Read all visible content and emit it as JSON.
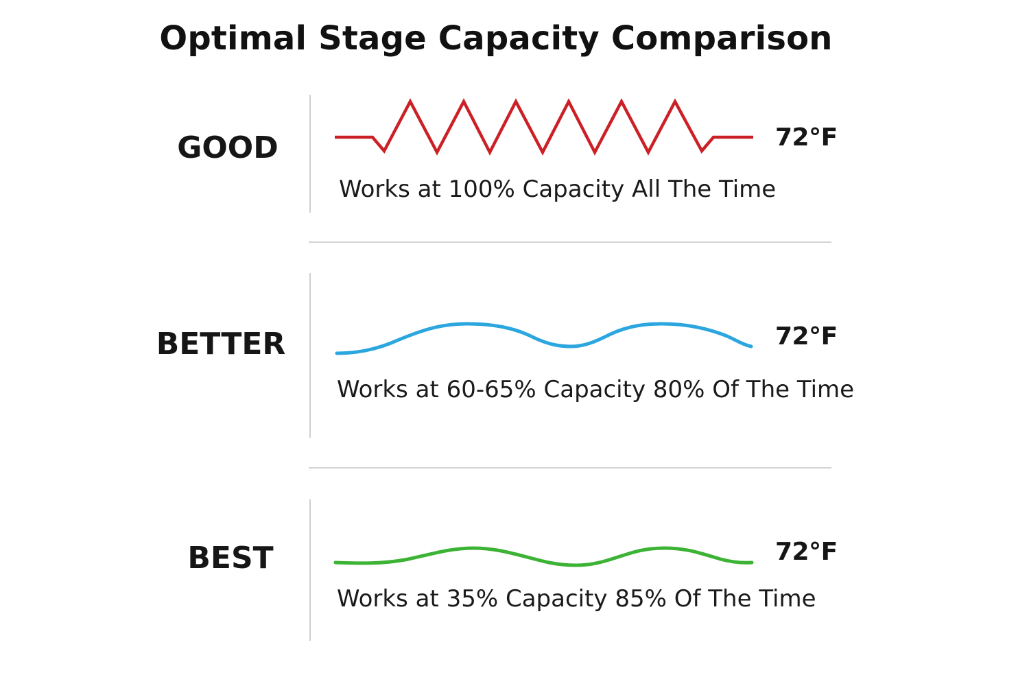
{
  "title": "Optimal Stage Capacity Comparison",
  "tiers": [
    {
      "label": "GOOD",
      "temperature": "72°F",
      "description": "Works at 100% Capacity All The Time",
      "color": "#cc2027",
      "wave": "zigzag",
      "capacity_percent": 100,
      "time_percent": 100
    },
    {
      "label": "BETTER",
      "temperature": "72°F",
      "description": "Works at 60-65% Capacity 80% Of The Time",
      "color": "#2ba6df",
      "wave": "smooth",
      "capacity_percent": "60-65",
      "time_percent": 80
    },
    {
      "label": "BEST",
      "temperature": "72°F",
      "description": "Works at 35% Capacity 85% Of The Time",
      "color": "#3cb335",
      "wave": "gentle",
      "capacity_percent": 35,
      "time_percent": 85
    }
  ]
}
